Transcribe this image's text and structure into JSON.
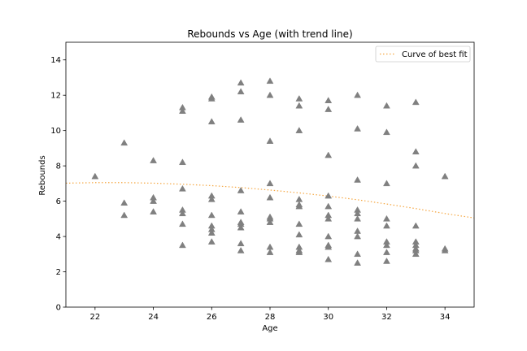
{
  "chart_data": {
    "type": "scatter",
    "title": "Rebounds vs Age (with trend line)",
    "xlabel": "Age",
    "ylabel": "Rebounds",
    "xlim": [
      21,
      35
    ],
    "ylim": [
      0,
      15
    ],
    "xticks": [
      22,
      24,
      26,
      28,
      30,
      32,
      34
    ],
    "yticks": [
      0,
      2,
      4,
      6,
      8,
      10,
      12,
      14
    ],
    "grid": false,
    "legend_position": "top-right",
    "colors": {
      "points": "#808080",
      "trend": "#f5a742"
    },
    "series": [
      {
        "marker": "triangle",
        "points": [
          [
            22,
            7.4
          ],
          [
            23,
            9.3
          ],
          [
            23,
            5.9
          ],
          [
            23,
            5.2
          ],
          [
            24,
            8.3
          ],
          [
            24,
            6.2
          ],
          [
            24,
            6.0
          ],
          [
            24,
            5.4
          ],
          [
            25,
            11.3
          ],
          [
            25,
            11.1
          ],
          [
            25,
            8.2
          ],
          [
            25,
            6.7
          ],
          [
            25,
            5.5
          ],
          [
            25,
            5.3
          ],
          [
            25,
            4.7
          ],
          [
            25,
            3.5
          ],
          [
            26,
            11.9
          ],
          [
            26,
            11.8
          ],
          [
            26,
            10.5
          ],
          [
            26,
            6.3
          ],
          [
            26,
            6.1
          ],
          [
            26,
            5.2
          ],
          [
            26,
            4.6
          ],
          [
            26,
            4.4
          ],
          [
            26,
            4.2
          ],
          [
            26,
            3.7
          ],
          [
            27,
            12.7
          ],
          [
            27,
            12.2
          ],
          [
            27,
            10.6
          ],
          [
            27,
            6.6
          ],
          [
            27,
            5.4
          ],
          [
            27,
            4.8
          ],
          [
            27,
            4.7
          ],
          [
            27,
            4.5
          ],
          [
            27,
            3.6
          ],
          [
            27,
            3.2
          ],
          [
            28,
            12.8
          ],
          [
            28,
            12.0
          ],
          [
            28,
            9.4
          ],
          [
            28,
            7.0
          ],
          [
            28,
            6.2
          ],
          [
            28,
            5.1
          ],
          [
            28,
            5.0
          ],
          [
            28,
            4.8
          ],
          [
            28,
            3.4
          ],
          [
            28,
            3.1
          ],
          [
            29,
            11.8
          ],
          [
            29,
            11.4
          ],
          [
            29,
            10.0
          ],
          [
            29,
            6.1
          ],
          [
            29,
            5.8
          ],
          [
            29,
            5.7
          ],
          [
            29,
            4.7
          ],
          [
            29,
            4.1
          ],
          [
            29,
            3.4
          ],
          [
            29,
            3.2
          ],
          [
            29,
            3.1
          ],
          [
            30,
            11.7
          ],
          [
            30,
            11.2
          ],
          [
            30,
            8.6
          ],
          [
            30,
            6.3
          ],
          [
            30,
            5.7
          ],
          [
            30,
            5.2
          ],
          [
            30,
            5.0
          ],
          [
            30,
            4.0
          ],
          [
            30,
            3.5
          ],
          [
            30,
            3.4
          ],
          [
            30,
            2.7
          ],
          [
            31,
            12.0
          ],
          [
            31,
            10.1
          ],
          [
            31,
            7.2
          ],
          [
            31,
            5.5
          ],
          [
            31,
            5.3
          ],
          [
            31,
            5.0
          ],
          [
            31,
            4.3
          ],
          [
            31,
            4.0
          ],
          [
            31,
            3.0
          ],
          [
            31,
            2.5
          ],
          [
            32,
            11.4
          ],
          [
            32,
            9.9
          ],
          [
            32,
            7.0
          ],
          [
            32,
            5.0
          ],
          [
            32,
            4.6
          ],
          [
            32,
            3.7
          ],
          [
            32,
            3.5
          ],
          [
            32,
            3.1
          ],
          [
            32,
            2.6
          ],
          [
            33,
            11.6
          ],
          [
            33,
            8.8
          ],
          [
            33,
            8.0
          ],
          [
            33,
            4.6
          ],
          [
            33,
            3.7
          ],
          [
            33,
            3.5
          ],
          [
            33,
            3.3
          ],
          [
            33,
            3.2
          ],
          [
            33,
            3.0
          ],
          [
            34,
            7.4
          ],
          [
            34,
            3.3
          ],
          [
            34,
            3.2
          ]
        ]
      },
      {
        "name": "Curve of best fit",
        "type": "line",
        "style": "dotted",
        "points": [
          [
            21,
            7.02
          ],
          [
            22,
            7.05
          ],
          [
            23,
            7.05
          ],
          [
            24,
            7.02
          ],
          [
            25,
            6.96
          ],
          [
            26,
            6.88
          ],
          [
            27,
            6.77
          ],
          [
            28,
            6.63
          ],
          [
            29,
            6.47
          ],
          [
            30,
            6.29
          ],
          [
            31,
            6.08
          ],
          [
            32,
            5.84
          ],
          [
            33,
            5.58
          ],
          [
            34,
            5.3
          ],
          [
            35,
            5.05
          ]
        ]
      }
    ]
  }
}
